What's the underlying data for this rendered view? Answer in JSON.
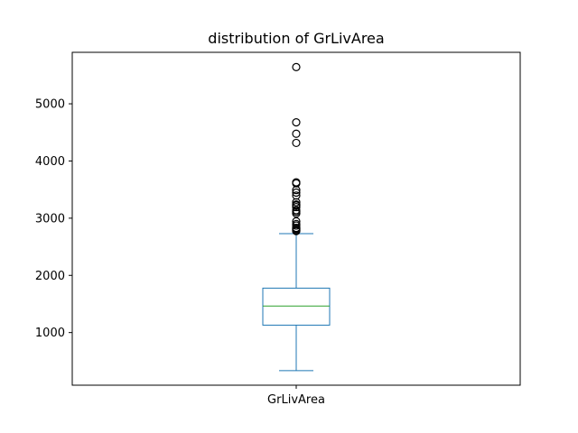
{
  "chart_data": {
    "type": "box",
    "title": "distribution of GrLivArea",
    "xlabel": "",
    "ylabel": "",
    "categories": [
      "GrLivArea"
    ],
    "ylim": [
      80,
      5900
    ],
    "yticks": [
      1000,
      2000,
      3000,
      4000,
      5000
    ],
    "grid": false,
    "legend": "none",
    "colors": {
      "box": "#1f77b4",
      "median": "#2ca02c",
      "outlier": "#000000"
    },
    "boxes": [
      {
        "name": "GrLivArea",
        "whisker_low": 334,
        "q1": 1130,
        "median": 1464,
        "q3": 1777,
        "whisker_high": 2730,
        "outliers": [
          2775,
          2784,
          2792,
          2810,
          2822,
          2830,
          2872,
          2898,
          2945,
          3082,
          3112,
          3140,
          3194,
          3222,
          3228,
          3238,
          3279,
          3395,
          3447,
          3493,
          3608,
          3627,
          4316,
          4476,
          4676,
          5642
        ]
      }
    ]
  }
}
